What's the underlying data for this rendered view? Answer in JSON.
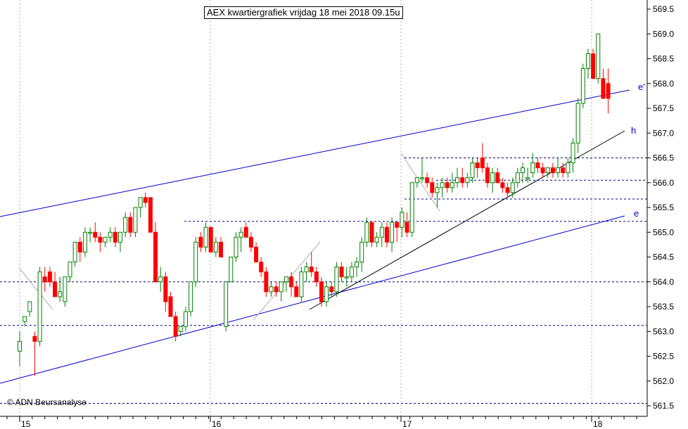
{
  "chart_data": {
    "type": "candlestick",
    "title": "AEX kwartiergrafiek vrijdag 18 mei 2018 09.15u",
    "credit": "© ADN Beursanalyse",
    "ylim": [
      561.45,
      569.65
    ],
    "y_ticks": [
      "561.5",
      "562.0",
      "562.5",
      "563.0",
      "563.5",
      "564.0",
      "564.5",
      "565.0",
      "565.5",
      "566.0",
      "566.5",
      "567.0",
      "567.5",
      "568.0",
      "568.5",
      "569.0",
      "569.5"
    ],
    "x_day_labels": [
      "15",
      "16",
      "17",
      "18"
    ],
    "grid": "dotted-vertical",
    "colors": {
      "up": "#008000",
      "down": "#ff0000",
      "trend": "#0000cc",
      "support": "#000080",
      "grid": "#b0b0b0"
    },
    "horizontal_levels": [
      564.0,
      563.12,
      565.22,
      565.67,
      566.05,
      566.5,
      561.55
    ],
    "trend_labels": [
      "e'",
      "h",
      "e"
    ],
    "candles": [
      [
        562.6,
        563.0,
        562.3,
        562.8
      ],
      [
        563.2,
        563.3,
        563.1,
        563.3
      ],
      [
        563.4,
        563.6,
        563.3,
        563.6
      ],
      [
        562.9,
        563.0,
        562.1,
        562.8
      ],
      [
        562.8,
        564.3,
        562.7,
        564.2
      ],
      [
        564.1,
        564.3,
        563.8,
        564.0
      ],
      [
        564.2,
        564.3,
        563.9,
        564.0
      ],
      [
        564.0,
        564.2,
        563.7,
        563.7
      ],
      [
        563.7,
        564.1,
        563.6,
        563.8
      ],
      [
        563.6,
        564.1,
        563.5,
        564.1
      ],
      [
        564.1,
        564.4,
        564.0,
        564.4
      ],
      [
        564.4,
        564.8,
        564.3,
        564.8
      ],
      [
        564.8,
        564.9,
        564.4,
        564.6
      ],
      [
        564.6,
        565.1,
        564.5,
        565.0
      ],
      [
        565.0,
        565.1,
        564.8,
        565.0
      ],
      [
        565.0,
        565.2,
        564.8,
        564.9
      ],
      [
        564.9,
        565.0,
        564.6,
        564.8
      ],
      [
        564.8,
        564.9,
        564.7,
        564.9
      ],
      [
        564.9,
        565.1,
        564.8,
        565.0
      ],
      [
        565.0,
        565.1,
        564.7,
        564.8
      ],
      [
        564.8,
        565.0,
        564.6,
        565.0
      ],
      [
        565.0,
        565.4,
        564.9,
        565.3
      ],
      [
        565.3,
        565.4,
        564.9,
        565.0
      ],
      [
        565.0,
        565.5,
        564.9,
        565.5
      ],
      [
        565.5,
        565.7,
        565.3,
        565.7
      ],
      [
        565.7,
        565.8,
        565.5,
        565.6
      ],
      [
        565.7,
        565.7,
        565.0,
        565.0
      ],
      [
        565.0,
        565.2,
        564.0,
        564.0
      ],
      [
        564.0,
        564.3,
        563.8,
        564.1
      ],
      [
        564.1,
        564.2,
        563.4,
        563.6
      ],
      [
        563.7,
        563.8,
        563.3,
        563.3
      ],
      [
        563.3,
        563.4,
        562.8,
        562.9
      ],
      [
        563.0,
        563.1,
        562.9,
        563.1
      ],
      [
        563.1,
        563.5,
        563.0,
        563.4
      ],
      [
        563.4,
        564.0,
        563.3,
        564.0
      ],
      [
        564.0,
        564.9,
        563.9,
        564.8
      ],
      [
        564.9,
        565.0,
        564.6,
        564.7
      ],
      [
        564.7,
        565.2,
        564.6,
        565.1
      ],
      [
        565.1,
        565.1,
        564.6,
        564.6
      ],
      [
        564.6,
        564.9,
        564.5,
        564.8
      ],
      [
        564.8,
        564.9,
        564.5,
        564.5
      ],
      [
        563.1,
        564.0,
        563.0,
        564.0
      ],
      [
        564.0,
        564.5,
        564.0,
        564.5
      ],
      [
        564.5,
        565.0,
        564.4,
        564.9
      ],
      [
        564.9,
        565.1,
        564.6,
        565.0
      ],
      [
        565.1,
        565.2,
        564.9,
        564.9
      ],
      [
        564.9,
        565.0,
        564.6,
        564.7
      ],
      [
        564.7,
        564.8,
        564.4,
        564.4
      ],
      [
        564.4,
        564.5,
        564.1,
        564.2
      ],
      [
        564.2,
        564.3,
        563.7,
        563.8
      ],
      [
        563.8,
        564.0,
        563.7,
        563.9
      ],
      [
        563.9,
        564.0,
        563.7,
        563.8
      ],
      [
        563.8,
        564.0,
        563.6,
        564.0
      ],
      [
        564.0,
        564.1,
        563.8,
        564.1
      ],
      [
        564.1,
        564.2,
        563.7,
        563.9
      ],
      [
        563.9,
        564.0,
        563.7,
        563.7
      ],
      [
        563.7,
        564.3,
        563.6,
        564.2
      ],
      [
        564.2,
        564.4,
        564.0,
        564.3
      ],
      [
        564.3,
        564.6,
        564.1,
        564.2
      ],
      [
        564.2,
        564.3,
        563.9,
        564.0
      ],
      [
        564.0,
        564.1,
        563.5,
        563.6
      ],
      [
        563.6,
        564.0,
        563.5,
        563.9
      ],
      [
        563.9,
        564.0,
        563.7,
        563.8
      ],
      [
        563.8,
        564.4,
        563.7,
        564.3
      ],
      [
        564.3,
        564.4,
        564.0,
        564.1
      ],
      [
        564.1,
        564.3,
        563.9,
        564.1
      ],
      [
        564.1,
        564.4,
        564.0,
        564.3
      ],
      [
        564.3,
        564.5,
        564.1,
        564.4
      ],
      [
        564.4,
        564.9,
        564.2,
        564.8
      ],
      [
        564.8,
        565.3,
        564.7,
        565.2
      ],
      [
        565.2,
        565.2,
        564.7,
        564.8
      ],
      [
        564.8,
        565.0,
        564.7,
        564.9
      ],
      [
        564.9,
        565.2,
        564.7,
        565.1
      ],
      [
        565.1,
        565.2,
        564.7,
        564.8
      ],
      [
        564.8,
        565.3,
        564.6,
        565.2
      ],
      [
        565.2,
        565.2,
        564.8,
        565.1
      ],
      [
        565.1,
        565.5,
        564.9,
        565.4
      ],
      [
        565.2,
        565.4,
        564.9,
        565.0
      ],
      [
        565.0,
        566.0,
        564.9,
        566.0
      ],
      [
        566.0,
        566.1,
        565.9,
        566.1
      ],
      [
        566.1,
        566.5,
        566.0,
        566.1
      ],
      [
        566.1,
        566.2,
        565.9,
        566.0
      ],
      [
        566.0,
        566.1,
        565.7,
        565.8
      ],
      [
        565.8,
        566.0,
        565.5,
        565.9
      ],
      [
        565.9,
        566.1,
        565.7,
        566.0
      ],
      [
        566.0,
        566.1,
        565.8,
        565.9
      ],
      [
        565.9,
        566.2,
        565.8,
        566.0
      ],
      [
        566.0,
        566.3,
        565.9,
        566.1
      ],
      [
        566.1,
        566.3,
        565.9,
        566.0
      ],
      [
        566.0,
        566.2,
        565.9,
        566.1
      ],
      [
        566.1,
        566.5,
        566.0,
        566.4
      ],
      [
        566.4,
        566.5,
        566.1,
        566.3
      ],
      [
        566.5,
        566.8,
        566.2,
        566.3
      ],
      [
        566.3,
        566.4,
        565.9,
        566.0
      ],
      [
        566.0,
        566.3,
        565.8,
        566.2
      ],
      [
        566.2,
        566.3,
        566.0,
        566.0
      ],
      [
        566.0,
        566.1,
        565.8,
        565.9
      ],
      [
        565.9,
        566.0,
        565.7,
        565.8
      ],
      [
        565.8,
        566.1,
        565.7,
        566.0
      ],
      [
        566.0,
        566.3,
        565.9,
        566.2
      ],
      [
        566.2,
        566.4,
        566.0,
        566.3
      ],
      [
        566.1,
        566.3,
        566.0,
        566.1
      ],
      [
        566.2,
        566.6,
        566.1,
        566.4
      ],
      [
        566.4,
        566.5,
        566.2,
        566.3
      ],
      [
        566.3,
        566.4,
        566.1,
        566.2
      ],
      [
        566.2,
        566.3,
        566.1,
        566.3
      ],
      [
        566.3,
        566.4,
        566.1,
        566.2
      ],
      [
        566.2,
        566.5,
        566.1,
        566.3
      ],
      [
        566.3,
        566.4,
        566.1,
        566.2
      ],
      [
        566.2,
        566.5,
        566.1,
        566.4
      ],
      [
        566.4,
        566.9,
        566.2,
        566.8
      ],
      [
        566.8,
        567.7,
        566.6,
        567.6
      ],
      [
        567.6,
        568.4,
        567.5,
        568.3
      ],
      [
        568.3,
        568.7,
        568.1,
        568.6
      ],
      [
        568.6,
        568.7,
        568.1,
        568.1
      ],
      [
        568.1,
        569.0,
        568.0,
        569.0
      ],
      [
        568.1,
        568.3,
        567.7,
        567.7
      ],
      [
        568.0,
        568.3,
        567.4,
        567.7
      ]
    ]
  }
}
